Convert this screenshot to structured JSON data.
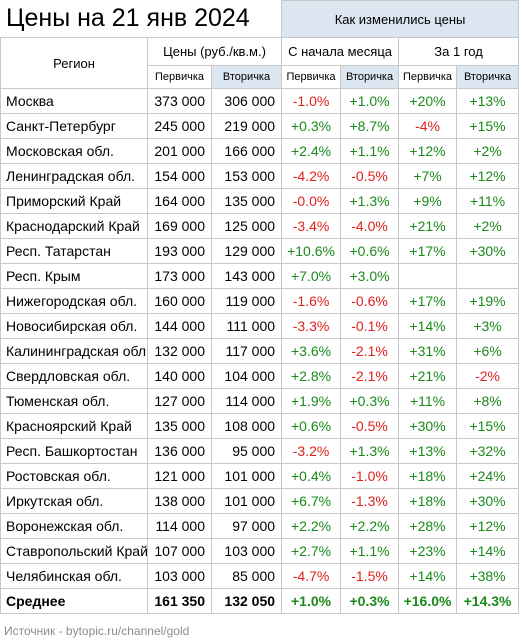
{
  "title": "Цены на 21 янв 2024",
  "header": {
    "how_changed": "Как изменились цены",
    "region": "Регион",
    "prices": "Цены (руб./кв.м.)",
    "since_month": "С начала месяца",
    "year": "За 1 год",
    "primary": "Первичка",
    "secondary": "Вторичка"
  },
  "rows": [
    {
      "region": "Москва",
      "p": "373 000",
      "s": "306 000",
      "mp": "-1.0%",
      "ms": "+1.0%",
      "yp": "+20%",
      "ys": "+13%"
    },
    {
      "region": "Санкт-Петербург",
      "p": "245 000",
      "s": "219 000",
      "mp": "+0.3%",
      "ms": "+8.7%",
      "yp": "-4%",
      "ys": "+15%"
    },
    {
      "region": "Московская обл.",
      "p": "201 000",
      "s": "166 000",
      "mp": "+2.4%",
      "ms": "+1.1%",
      "yp": "+12%",
      "ys": "+2%"
    },
    {
      "region": "Ленинградская обл.",
      "p": "154 000",
      "s": "153 000",
      "mp": "-4.2%",
      "ms": "-0.5%",
      "yp": "+7%",
      "ys": "+12%"
    },
    {
      "region": "Приморский Край",
      "p": "164 000",
      "s": "135 000",
      "mp": "-0.0%",
      "ms": "+1.3%",
      "yp": "+9%",
      "ys": "+11%"
    },
    {
      "region": "Краснодарский Край",
      "p": "169 000",
      "s": "125 000",
      "mp": "-3.4%",
      "ms": "-4.0%",
      "yp": "+21%",
      "ys": "+2%"
    },
    {
      "region": "Респ. Татарстан",
      "p": "193 000",
      "s": "129 000",
      "mp": "+10.6%",
      "ms": "+0.6%",
      "yp": "+17%",
      "ys": "+30%"
    },
    {
      "region": "Респ. Крым",
      "p": "173 000",
      "s": "143 000",
      "mp": "+7.0%",
      "ms": "+3.0%",
      "yp": "",
      "ys": ""
    },
    {
      "region": "Нижегородская обл.",
      "p": "160 000",
      "s": "119 000",
      "mp": "-1.6%",
      "ms": "-0.6%",
      "yp": "+17%",
      "ys": "+19%"
    },
    {
      "region": "Новосибирская обл.",
      "p": "144 000",
      "s": "111 000",
      "mp": "-3.3%",
      "ms": "-0.1%",
      "yp": "+14%",
      "ys": "+3%"
    },
    {
      "region": "Калининградская обл.",
      "p": "132 000",
      "s": "117 000",
      "mp": "+3.6%",
      "ms": "-2.1%",
      "yp": "+31%",
      "ys": "+6%"
    },
    {
      "region": "Свердловская обл.",
      "p": "140 000",
      "s": "104 000",
      "mp": "+2.8%",
      "ms": "-2.1%",
      "yp": "+21%",
      "ys": "-2%"
    },
    {
      "region": "Тюменская обл.",
      "p": "127 000",
      "s": "114 000",
      "mp": "+1.9%",
      "ms": "+0.3%",
      "yp": "+11%",
      "ys": "+8%"
    },
    {
      "region": "Красноярский Край",
      "p": "135 000",
      "s": "108 000",
      "mp": "+0.6%",
      "ms": "-0.5%",
      "yp": "+30%",
      "ys": "+15%"
    },
    {
      "region": "Респ. Башкортостан",
      "p": "136 000",
      "s": "95 000",
      "mp": "-3.2%",
      "ms": "+1.3%",
      "yp": "+13%",
      "ys": "+32%"
    },
    {
      "region": "Ростовская обл.",
      "p": "121 000",
      "s": "101 000",
      "mp": "+0.4%",
      "ms": "-1.0%",
      "yp": "+18%",
      "ys": "+24%"
    },
    {
      "region": "Иркутская обл.",
      "p": "138 000",
      "s": "101 000",
      "mp": "+6.7%",
      "ms": "-1.3%",
      "yp": "+18%",
      "ys": "+30%"
    },
    {
      "region": "Воронежская обл.",
      "p": "114 000",
      "s": "97 000",
      "mp": "+2.2%",
      "ms": "+2.2%",
      "yp": "+28%",
      "ys": "+12%"
    },
    {
      "region": "Ставропольский Край",
      "p": "107 000",
      "s": "103 000",
      "mp": "+2.7%",
      "ms": "+1.1%",
      "yp": "+23%",
      "ys": "+14%"
    },
    {
      "region": "Челябинская обл.",
      "p": "103 000",
      "s": "85 000",
      "mp": "-4.7%",
      "ms": "-1.5%",
      "yp": "+14%",
      "ys": "+38%"
    }
  ],
  "average": {
    "region": "Среднее",
    "p": "161 350",
    "s": "132 050",
    "mp": "+1.0%",
    "ms": "+0.3%",
    "yp": "+16.0%",
    "ys": "+14.3%"
  },
  "footer": "Источник - bytopic.ru/channel/gold",
  "colors": {
    "negative": "#e0201b",
    "positive": "#1a8a1a",
    "header_blue": "#dce6f1"
  }
}
